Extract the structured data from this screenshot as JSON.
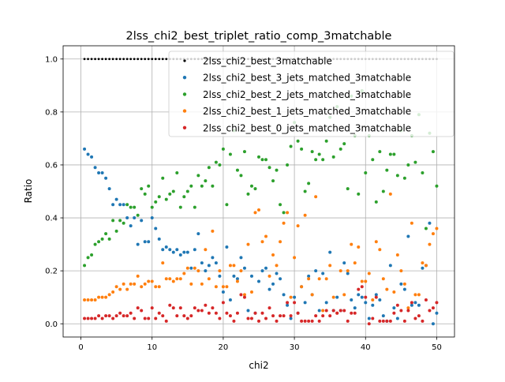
{
  "chart_data": {
    "type": "scatter",
    "title": "2lss_chi2_best_triplet_ratio_comp_3matchable",
    "xlabel": "chi2",
    "ylabel": "Ratio",
    "xlim": [
      -2.5,
      52.5
    ],
    "ylim": [
      -0.05,
      1.05
    ],
    "xticks": [
      0,
      10,
      20,
      30,
      40,
      50
    ],
    "yticks": [
      0.0,
      0.2,
      0.4,
      0.6,
      0.8,
      1.0
    ],
    "xtick_labels": [
      "0",
      "10",
      "20",
      "30",
      "40",
      "50"
    ],
    "ytick_labels": [
      "0.0",
      "0.2",
      "0.4",
      "0.6",
      "0.8",
      "1.0"
    ],
    "grid": true,
    "legend_position": "top-right",
    "x": [
      0.5,
      1.0,
      1.5,
      2.0,
      2.5,
      3.0,
      3.5,
      4.0,
      4.5,
      5.0,
      5.5,
      6.0,
      6.5,
      7.0,
      7.5,
      8.0,
      8.5,
      9.0,
      9.5,
      10.0,
      10.5,
      11.0,
      11.5,
      12.0,
      12.5,
      13.0,
      13.5,
      14.0,
      14.5,
      15.0,
      15.5,
      16.0,
      16.5,
      17.0,
      17.5,
      18.0,
      18.5,
      19.0,
      19.5,
      20.0,
      20.5,
      21.0,
      21.5,
      22.0,
      22.5,
      23.0,
      23.5,
      24.0,
      24.5,
      25.0,
      25.5,
      26.0,
      26.5,
      27.0,
      27.5,
      28.0,
      28.5,
      29.0,
      29.5,
      30.0,
      30.5,
      31.0,
      31.5,
      32.0,
      32.5,
      33.0,
      33.5,
      34.0,
      34.5,
      35.0,
      35.5,
      36.0,
      36.5,
      37.0,
      37.5,
      38.0,
      38.5,
      39.0,
      39.5,
      40.0,
      40.5,
      41.0,
      41.5,
      42.0,
      42.5,
      43.0,
      43.5,
      44.0,
      44.5,
      45.0,
      45.5,
      46.0,
      46.5,
      47.0,
      47.5,
      48.0,
      48.5,
      49.0,
      49.5,
      50.0
    ],
    "series": [
      {
        "name": "2lss_chi2_best_3matchable",
        "color": "#000000",
        "values": [
          1,
          1,
          1,
          1,
          1,
          1,
          1,
          1,
          1,
          1,
          1,
          1,
          1,
          1,
          1,
          1,
          1,
          1,
          1,
          1,
          1,
          1,
          1,
          1,
          1,
          1,
          1,
          1,
          1,
          1,
          1,
          1,
          1,
          1,
          1,
          1,
          1,
          1,
          1,
          1,
          1,
          1,
          1,
          1,
          1,
          1,
          1,
          1,
          1,
          1,
          1,
          1,
          1,
          1,
          1,
          1,
          1,
          1,
          1,
          1,
          1,
          1,
          1,
          1,
          1,
          1,
          1,
          1,
          1,
          1,
          1,
          1,
          1,
          1,
          1,
          1,
          1,
          1,
          1,
          1,
          1,
          1,
          1,
          1,
          1,
          1,
          1,
          1,
          1,
          1,
          1,
          1,
          1,
          1,
          1,
          1,
          1,
          1,
          1,
          1
        ]
      },
      {
        "name": "2lss_chi2_best_3_jets_matched_3matchable",
        "color": "#1f77b4",
        "values": [
          0.66,
          0.64,
          0.63,
          0.59,
          0.57,
          0.57,
          0.55,
          0.51,
          0.45,
          0.47,
          0.45,
          0.45,
          0.4,
          0.37,
          0.4,
          0.3,
          0.39,
          0.31,
          0.31,
          0.4,
          0.36,
          0.32,
          0.28,
          0.29,
          0.28,
          0.27,
          0.28,
          0.26,
          0.27,
          0.27,
          0.21,
          0.28,
          0.34,
          0.23,
          0.2,
          0.22,
          0.25,
          0.23,
          0.18,
          0.12,
          0.29,
          0.09,
          0.18,
          0.17,
          0.25,
          0.21,
          0.05,
          0.18,
          0.04,
          0.16,
          0.2,
          0.21,
          0.13,
          0.15,
          0.19,
          0.17,
          0.11,
          0.07,
          0.02,
          0.1,
          0.04,
          0.14,
          0.08,
          0.18,
          0.11,
          0.2,
          0.05,
          0.19,
          0.08,
          0.27,
          0.05,
          0.1,
          0.05,
          0.23,
          0.19,
          0.09,
          0.06,
          0.11,
          0.1,
          0.08,
          0.02,
          0.07,
          0.11,
          0.09,
          0.03,
          0.01,
          0.22,
          0.06,
          0.02,
          0.15,
          0.13,
          0.33,
          0.07,
          0.08,
          0.07,
          0.21,
          0.22,
          0.38,
          0.0,
          0.04
        ]
      },
      {
        "name": "2lss_chi2_best_2_jets_matched_3matchable",
        "color": "#2ca02c",
        "values": [
          0.22,
          0.25,
          0.26,
          0.3,
          0.31,
          0.32,
          0.34,
          0.32,
          0.39,
          0.35,
          0.39,
          0.38,
          0.45,
          0.44,
          0.44,
          0.41,
          0.51,
          0.49,
          0.52,
          0.44,
          0.46,
          0.48,
          0.55,
          0.47,
          0.49,
          0.5,
          0.57,
          0.44,
          0.48,
          0.5,
          0.52,
          0.44,
          0.56,
          0.52,
          0.54,
          0.59,
          0.52,
          0.61,
          0.6,
          0.66,
          0.45,
          0.64,
          0.73,
          0.58,
          0.56,
          0.65,
          0.49,
          0.52,
          0.51,
          0.63,
          0.62,
          0.62,
          0.59,
          0.54,
          0.58,
          0.45,
          0.42,
          0.6,
          0.67,
          0.76,
          0.69,
          0.66,
          0.5,
          0.53,
          0.65,
          0.62,
          0.64,
          0.62,
          0.69,
          0.78,
          0.63,
          0.82,
          0.66,
          0.68,
          0.51,
          0.86,
          0.71,
          0.49,
          0.88,
          0.57,
          0.71,
          0.62,
          0.46,
          0.65,
          0.5,
          0.58,
          0.64,
          0.64,
          0.56,
          0.73,
          0.55,
          0.6,
          0.71,
          0.61,
          0.79,
          0.57,
          0.36,
          0.72,
          0.65,
          0.52
        ]
      },
      {
        "name": "2lss_chi2_best_1_jets_matched_3matchable",
        "color": "#ff7f0e",
        "values": [
          0.09,
          0.09,
          0.09,
          0.09,
          0.1,
          0.1,
          0.1,
          0.11,
          0.12,
          0.14,
          0.13,
          0.15,
          0.13,
          0.15,
          0.15,
          0.18,
          0.14,
          0.15,
          0.16,
          0.16,
          0.14,
          0.14,
          0.23,
          0.17,
          0.17,
          0.16,
          0.17,
          0.17,
          0.19,
          0.21,
          0.15,
          0.21,
          0.2,
          0.15,
          0.28,
          0.17,
          0.35,
          0.14,
          0.2,
          0.14,
          0.14,
          0.22,
          0.22,
          0.16,
          0.2,
          0.11,
          0.3,
          0.12,
          0.42,
          0.43,
          0.31,
          0.33,
          0.18,
          0.26,
          0.22,
          0.31,
          0.38,
          0.42,
          0.1,
          0.25,
          0.37,
          0.14,
          0.41,
          0.17,
          0.11,
          0.48,
          0.17,
          0.05,
          0.17,
          0.22,
          0.1,
          0.04,
          0.2,
          0.11,
          0.2,
          0.3,
          0.23,
          0.29,
          0.16,
          0.16,
          0.19,
          0.09,
          0.31,
          0.28,
          0.17,
          0.13,
          0.49,
          0.12,
          0.26,
          0.2,
          0.15,
          0.06,
          0.38,
          0.11,
          0.11,
          0.23,
          0.22,
          0.3,
          0.34,
          0.36
        ]
      },
      {
        "name": "2lss_chi2_best_0_jets_matched_3matchable",
        "color": "#d62728",
        "values": [
          0.02,
          0.02,
          0.02,
          0.02,
          0.03,
          0.02,
          0.03,
          0.03,
          0.02,
          0.03,
          0.04,
          0.03,
          0.03,
          0.04,
          0.02,
          0.06,
          0.05,
          0.02,
          0.02,
          0.06,
          0.02,
          0.04,
          0.03,
          0.01,
          0.07,
          0.06,
          0.03,
          0.06,
          0.03,
          0.02,
          0.03,
          0.06,
          0.05,
          0.05,
          0.07,
          0.04,
          0.06,
          0.04,
          0.02,
          0.08,
          0.04,
          0.03,
          0.01,
          0.04,
          0.11,
          0.1,
          0.02,
          0.02,
          0.04,
          0.01,
          0.04,
          0.02,
          0.06,
          0.03,
          0.01,
          0.03,
          0.03,
          0.08,
          0.03,
          0.08,
          0.04,
          0.01,
          0.01,
          0.01,
          0.01,
          0.03,
          0.01,
          0.03,
          0.05,
          0.03,
          0.05,
          0.04,
          0.05,
          0.05,
          0.01,
          0.04,
          0.04,
          0.13,
          0.14,
          0.1,
          0.0,
          0.02,
          0.1,
          0.01,
          0.01,
          0.01,
          0.01,
          0.04,
          0.07,
          0.05,
          0.01,
          0.05,
          0.08,
          0.02,
          0.03,
          0.01,
          0.09,
          0.05,
          0.06,
          0.08
        ]
      }
    ]
  }
}
